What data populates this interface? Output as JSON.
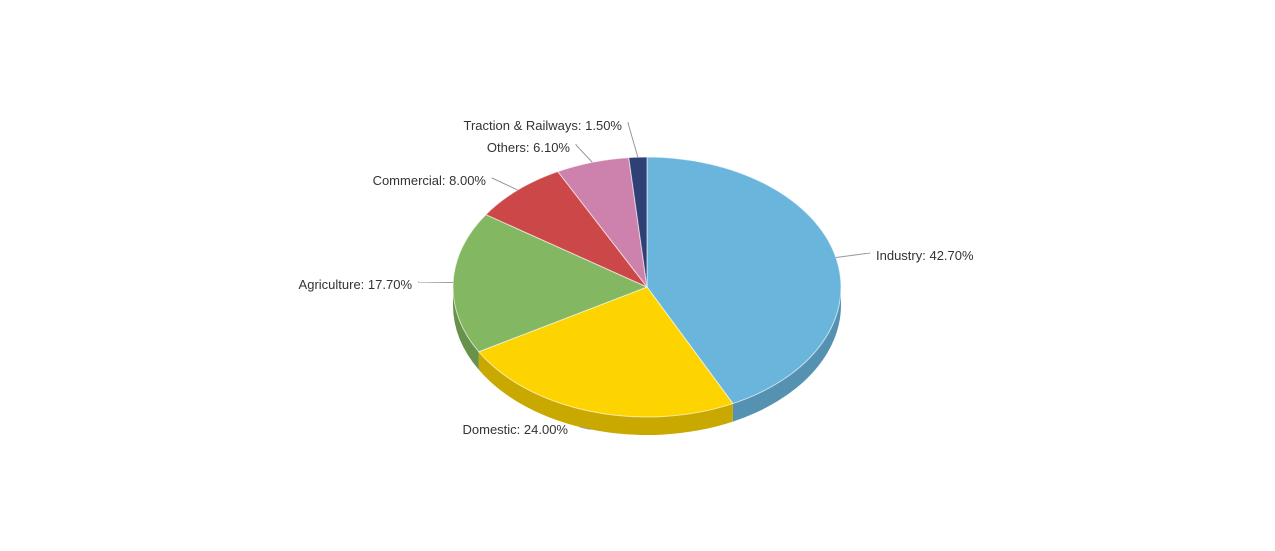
{
  "chart_data": {
    "type": "pie",
    "title": "",
    "three_d": true,
    "start_angle_deg": 0,
    "direction": "clockwise",
    "slices": [
      {
        "label": "Industry",
        "value": 42.7,
        "display": "Industry: 42.70%",
        "color": "#69b5dc",
        "side_color": "#5592b2"
      },
      {
        "label": "Domestic",
        "value": 24.0,
        "display": "Domestic: 24.00%",
        "color": "#fdd400",
        "side_color": "#c9a800"
      },
      {
        "label": "Agriculture",
        "value": 17.7,
        "display": "Agriculture: 17.70%",
        "color": "#84b761",
        "side_color": "#68914c"
      },
      {
        "label": "Commercial",
        "value": 8.0,
        "display": "Commercial: 8.00%",
        "color": "#cc4748",
        "side_color": "#a33839"
      },
      {
        "label": "Others",
        "value": 6.1,
        "display": "Others: 6.10%",
        "color": "#cd82ad",
        "side_color": "#a6688b"
      },
      {
        "label": "Traction & Railways",
        "value": 1.5,
        "display": "Traction & Railways: 1.50%",
        "color": "#2f4074",
        "side_color": "#24325a"
      }
    ]
  }
}
